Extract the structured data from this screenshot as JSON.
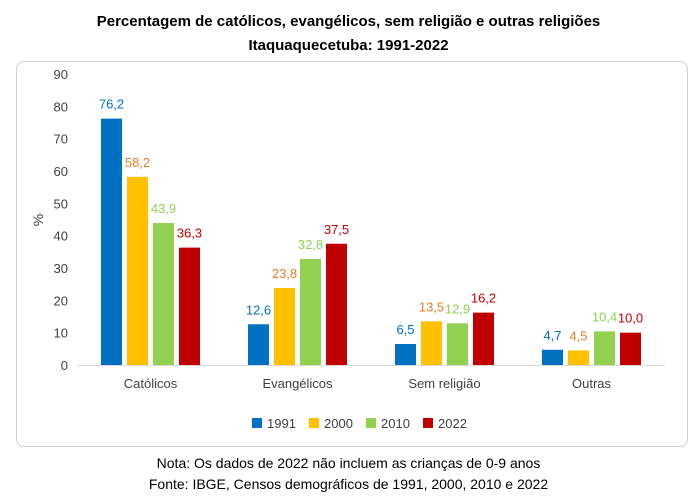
{
  "chart_data": {
    "type": "bar",
    "title": "Percentagem de católicos, evangélicos, sem religião e outras religiões",
    "subtitle": "Itaquaquecetuba: 1991-2022",
    "ylabel": "%",
    "xlabel": "",
    "ylim": [
      0,
      90
    ],
    "yticks": [
      0,
      10,
      20,
      30,
      40,
      50,
      60,
      70,
      80,
      90
    ],
    "grid": false,
    "legend_position": "bottom",
    "categories": [
      "Católicos",
      "Evangélicos",
      "Sem religião",
      "Outras"
    ],
    "series": [
      {
        "name": "1991",
        "color": "#0070c0",
        "values": [
          76.2,
          12.6,
          6.5,
          4.7
        ],
        "labels": [
          "76,2",
          "12,6",
          "6,5",
          "4,7"
        ]
      },
      {
        "name": "2000",
        "color": "#ffc000",
        "values": [
          58.2,
          23.8,
          13.5,
          4.5
        ],
        "labels": [
          "58,2",
          "23,8",
          "13,5",
          "4,5"
        ]
      },
      {
        "name": "2010",
        "color": "#92d050",
        "values": [
          43.9,
          32.8,
          12.9,
          10.4
        ],
        "labels": [
          "43,9",
          "32,8",
          "12,9",
          "10,4"
        ]
      },
      {
        "name": "2022",
        "color": "#c00000",
        "values": [
          36.3,
          37.5,
          16.2,
          10.0
        ],
        "labels": [
          "36,3",
          "37,5",
          "16,2",
          "10,0"
        ]
      }
    ],
    "label_colors": [
      "#0070c0",
      "#e67e22",
      "#92d050",
      "#c00000"
    ]
  },
  "notes": {
    "line1": "Nota: Os dados de 2022 não incluem as crianças de 0-9 anos",
    "line2": "Fonte: IBGE, Censos demográficos de 1991, 2000, 2010 e 2022"
  }
}
